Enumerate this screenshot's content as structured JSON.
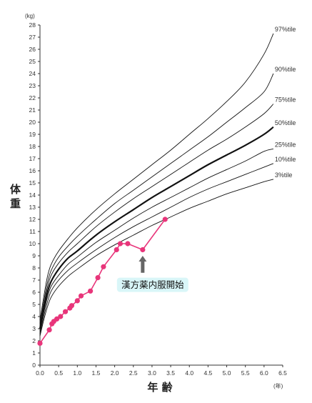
{
  "chart_data": {
    "type": "line",
    "y_unit": "(kg)",
    "x_unit": "(年)",
    "ylabel": [
      "体",
      "重"
    ],
    "xlabel": "年 齢",
    "xlim": [
      0,
      6.5
    ],
    "ylim": [
      0,
      28
    ],
    "x_ticks": [
      "0.0",
      "0.5",
      "1.0",
      "1.5",
      "2.0",
      "2.5",
      "3.0",
      "3.5",
      "4.0",
      "4.5",
      "5.0",
      "5.5",
      "6.0",
      "6.5"
    ],
    "y_ticks": [
      "0",
      "1",
      "2",
      "3",
      "4",
      "5",
      "6",
      "7",
      "8",
      "9",
      "10",
      "11",
      "12",
      "13",
      "14",
      "15",
      "16",
      "17",
      "18",
      "19",
      "20",
      "21",
      "22",
      "23",
      "24",
      "25",
      "26",
      "27",
      "28"
    ],
    "percentile_x": [
      0,
      0.1,
      0.2,
      0.3,
      0.5,
      0.75,
      1.0,
      1.5,
      2.0,
      2.5,
      3.0,
      3.5,
      4.0,
      4.5,
      5.0,
      5.5,
      6.0,
      6.25
    ],
    "percentiles": [
      {
        "name": "97%tile",
        "emphasis": false,
        "values": [
          3.7,
          5.6,
          7.3,
          8.3,
          9.4,
          10.4,
          11.3,
          12.8,
          14.1,
          15.3,
          16.5,
          17.7,
          19.0,
          20.3,
          21.7,
          23.3,
          25.6,
          27.3
        ]
      },
      {
        "name": "90%tile",
        "emphasis": false,
        "values": [
          3.4,
          5.2,
          6.8,
          7.8,
          8.9,
          9.8,
          10.6,
          12.0,
          13.3,
          14.4,
          15.5,
          16.6,
          17.7,
          18.8,
          20.0,
          21.2,
          22.5,
          24.0
        ]
      },
      {
        "name": "75%tile",
        "emphasis": false,
        "values": [
          3.2,
          4.9,
          6.4,
          7.4,
          8.4,
          9.3,
          10.0,
          11.4,
          12.6,
          13.7,
          14.7,
          15.7,
          16.7,
          17.7,
          18.6,
          19.6,
          20.7,
          21.5
        ]
      },
      {
        "name": "50%tile",
        "emphasis": true,
        "values": [
          3.0,
          4.6,
          6.0,
          6.9,
          7.9,
          8.8,
          9.4,
          10.7,
          11.8,
          12.8,
          13.8,
          14.7,
          15.6,
          16.5,
          17.3,
          18.1,
          19.0,
          19.6
        ]
      },
      {
        "name": "25%tile",
        "emphasis": false,
        "values": [
          2.8,
          4.3,
          5.6,
          6.5,
          7.4,
          8.3,
          8.9,
          10.1,
          11.1,
          12.1,
          13.0,
          13.8,
          14.6,
          15.4,
          16.1,
          16.8,
          17.6,
          17.8
        ]
      },
      {
        "name": "10%tile",
        "emphasis": false,
        "values": [
          2.6,
          4.0,
          5.2,
          6.1,
          7.0,
          7.8,
          8.4,
          9.5,
          10.5,
          11.4,
          12.2,
          13.0,
          13.8,
          14.5,
          15.1,
          15.7,
          16.3,
          16.6
        ]
      },
      {
        "name": "3%tile",
        "emphasis": false,
        "values": [
          2.4,
          3.7,
          4.8,
          5.6,
          6.5,
          7.3,
          7.9,
          9.0,
          9.9,
          10.7,
          11.5,
          12.2,
          12.9,
          13.5,
          14.1,
          14.6,
          15.1,
          15.3
        ]
      }
    ],
    "patient": {
      "color": "#e8357a",
      "points": [
        {
          "x": 0.0,
          "y": 1.8
        },
        {
          "x": 0.25,
          "y": 2.9
        },
        {
          "x": 0.32,
          "y": 3.4
        },
        {
          "x": 0.37,
          "y": 3.6
        },
        {
          "x": 0.45,
          "y": 3.8
        },
        {
          "x": 0.55,
          "y": 4.0
        },
        {
          "x": 0.68,
          "y": 4.4
        },
        {
          "x": 0.8,
          "y": 4.7
        },
        {
          "x": 0.85,
          "y": 4.9
        },
        {
          "x": 1.0,
          "y": 5.3
        },
        {
          "x": 1.1,
          "y": 5.7
        },
        {
          "x": 1.35,
          "y": 6.1
        },
        {
          "x": 1.55,
          "y": 7.2
        },
        {
          "x": 1.7,
          "y": 8.1
        },
        {
          "x": 2.05,
          "y": 9.5
        },
        {
          "x": 2.15,
          "y": 10.0
        },
        {
          "x": 2.35,
          "y": 10.0
        },
        {
          "x": 2.75,
          "y": 9.5
        },
        {
          "x": 3.35,
          "y": 12.0
        }
      ]
    },
    "annotation": {
      "text": "漢方薬内服開始",
      "x": 2.75,
      "box_color": "#d9f6f8",
      "arrow_color": "#666666"
    },
    "grid": false
  }
}
